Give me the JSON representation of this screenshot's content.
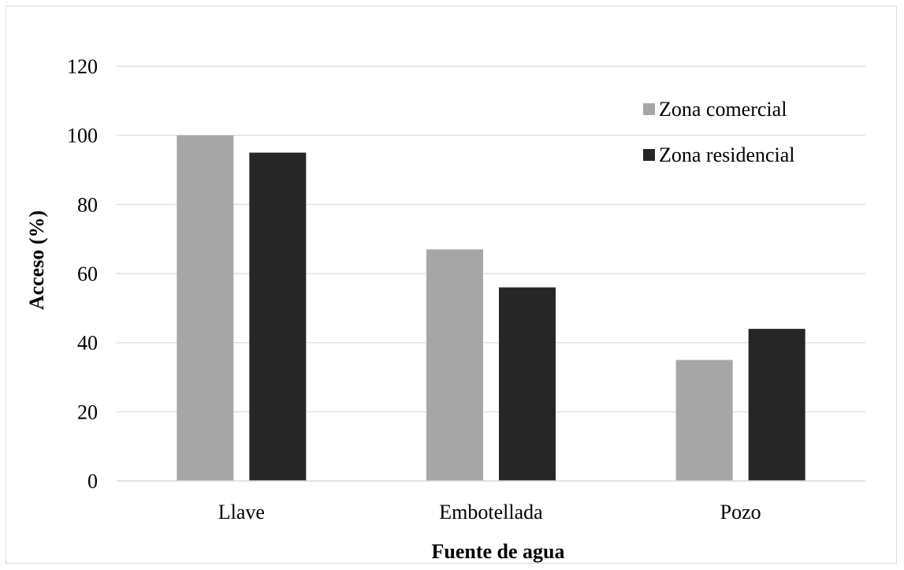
{
  "chart_data": {
    "type": "bar",
    "categories": [
      "Llave",
      "Embotellada",
      "Pozo"
    ],
    "series": [
      {
        "name": "Zona comercial",
        "values": [
          100,
          67,
          35
        ],
        "color": "#a6a6a6"
      },
      {
        "name": "Zona residencial",
        "values": [
          95,
          56,
          44
        ],
        "color": "#262626"
      }
    ],
    "xlabel": "Fuente de agua",
    "ylabel": "Acceso (%)",
    "ylim": [
      0,
      120
    ],
    "yticks": [
      0,
      20,
      40,
      60,
      80,
      100,
      120
    ],
    "grid": true,
    "legend_position": "top-right"
  }
}
